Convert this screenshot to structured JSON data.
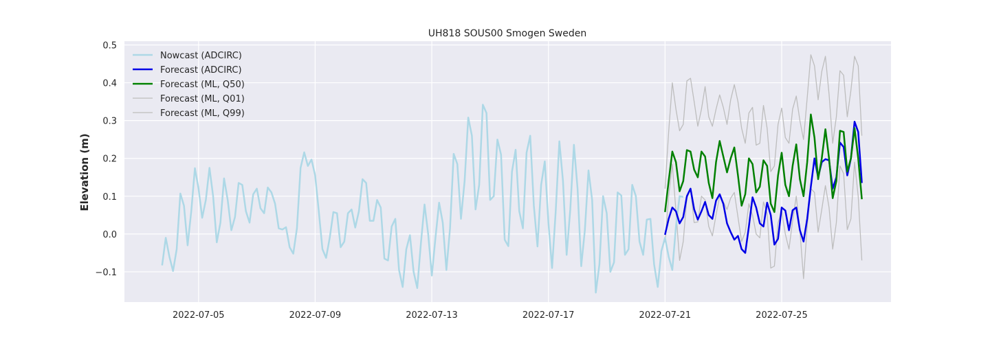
{
  "chart_data": {
    "type": "line",
    "title": "UH818 SOUS00 Smogen Sweden",
    "xlabel": "",
    "ylabel": "Elevation (m)",
    "xlim": [
      "2022-07-02T11:00",
      "2022-07-28T18:00"
    ],
    "ylim": [
      -0.18,
      0.51
    ],
    "x_ticks": [
      "2022-07-05",
      "2022-07-09",
      "2022-07-13",
      "2022-07-17",
      "2022-07-21",
      "2022-07-25"
    ],
    "y_ticks": [
      "0.5",
      "0.4",
      "0.3",
      "0.2",
      "0.1",
      "0.0",
      "−0.1"
    ],
    "y_tick_values": [
      0.5,
      0.4,
      0.3,
      0.2,
      0.1,
      0.0,
      -0.1
    ],
    "grid": true,
    "legend_position": "top-left",
    "series": [
      {
        "name": "Nowcast (ADCIRC)",
        "color": "#add8e6",
        "width": 2.5,
        "start": "2022-07-03T18:00",
        "step_hours": 3,
        "values": [
          -0.083,
          -0.01,
          -0.06,
          -0.098,
          -0.04,
          0.107,
          0.075,
          -0.03,
          0.06,
          0.174,
          0.12,
          0.043,
          0.09,
          0.175,
          0.1,
          -0.022,
          0.03,
          0.147,
          0.09,
          0.01,
          0.045,
          0.135,
          0.13,
          0.06,
          0.03,
          0.105,
          0.12,
          0.068,
          0.055,
          0.123,
          0.11,
          0.08,
          0.015,
          0.012,
          0.018,
          -0.035,
          -0.052,
          0.015,
          0.175,
          0.216,
          0.18,
          0.197,
          0.155,
          0.06,
          -0.04,
          -0.063,
          -0.01,
          0.058,
          0.055,
          -0.035,
          -0.02,
          0.055,
          0.065,
          0.017,
          0.06,
          0.145,
          0.135,
          0.035,
          0.035,
          0.09,
          0.07,
          -0.065,
          -0.07,
          0.02,
          0.04,
          -0.095,
          -0.14,
          -0.04,
          -0.003,
          -0.1,
          -0.143,
          -0.025,
          0.078,
          0.0,
          -0.11,
          -0.01,
          0.083,
          0.03,
          -0.095,
          0.015,
          0.212,
          0.185,
          0.04,
          0.14,
          0.308,
          0.26,
          0.065,
          0.13,
          0.342,
          0.32,
          0.09,
          0.1,
          0.25,
          0.21,
          -0.015,
          -0.032,
          0.165,
          0.223,
          0.06,
          0.015,
          0.215,
          0.26,
          0.075,
          -0.033,
          0.13,
          0.192,
          0.03,
          -0.09,
          0.06,
          0.245,
          0.14,
          -0.055,
          0.065,
          0.236,
          0.12,
          -0.085,
          0.01,
          0.168,
          0.09,
          -0.155,
          -0.08,
          0.1,
          0.055,
          -0.1,
          -0.075,
          0.11,
          0.102,
          -0.055,
          -0.04,
          0.13,
          0.1,
          -0.02,
          -0.055,
          0.038,
          0.04,
          -0.08,
          -0.14,
          -0.045,
          -0.01,
          -0.06,
          -0.095,
          0.02,
          0.1,
          0.098
        ]
      },
      {
        "name": "Forecast (ADCIRC)",
        "color": "#0000e6",
        "width": 2.5,
        "start": "2022-07-21T00:00",
        "step_hours": 3,
        "values": [
          -0.002,
          0.04,
          0.07,
          0.06,
          0.028,
          0.045,
          0.1,
          0.12,
          0.065,
          0.038,
          0.06,
          0.085,
          0.05,
          0.04,
          0.088,
          0.105,
          0.08,
          0.028,
          0.005,
          -0.015,
          -0.005,
          -0.04,
          -0.05,
          0.02,
          0.097,
          0.07,
          0.028,
          0.02,
          0.083,
          0.05,
          -0.028,
          -0.013,
          0.07,
          0.062,
          0.01,
          0.063,
          0.07,
          0.01,
          -0.02,
          0.04,
          0.125,
          0.2,
          0.15,
          0.19,
          0.198,
          0.195,
          0.12,
          0.15,
          0.242,
          0.23,
          0.155,
          0.2,
          0.297,
          0.27,
          0.135
        ]
      },
      {
        "name": "Forecast (ML, Q50)",
        "color": "#008000",
        "width": 2.5,
        "start": "2022-07-21T00:00",
        "step_hours": 3,
        "values": [
          0.058,
          0.14,
          0.218,
          0.19,
          0.113,
          0.14,
          0.222,
          0.218,
          0.17,
          0.15,
          0.218,
          0.205,
          0.135,
          0.095,
          0.19,
          0.246,
          0.205,
          0.163,
          0.2,
          0.229,
          0.155,
          0.075,
          0.105,
          0.2,
          0.185,
          0.11,
          0.125,
          0.195,
          0.18,
          0.08,
          0.058,
          0.155,
          0.215,
          0.13,
          0.1,
          0.18,
          0.237,
          0.145,
          0.1,
          0.19,
          0.316,
          0.255,
          0.145,
          0.2,
          0.277,
          0.2,
          0.095,
          0.14,
          0.273,
          0.27,
          0.165,
          0.2,
          0.28,
          0.2,
          0.092
        ]
      },
      {
        "name": "Forecast (ML, Q01)",
        "color": "#bdbdbd",
        "width": 1.3,
        "start": "2022-07-21T00:00",
        "step_hours": 3,
        "values": [
          -0.022,
          0.1,
          0.185,
          0.06,
          -0.07,
          -0.02,
          0.095,
          0.12,
          0.03,
          0.032,
          0.1,
          0.09,
          0.02,
          -0.005,
          0.05,
          0.1,
          0.085,
          0.065,
          0.095,
          0.11,
          0.045,
          -0.02,
          0.005,
          0.08,
          0.05,
          0.0,
          -0.01,
          0.085,
          0.055,
          -0.09,
          -0.085,
          0.03,
          0.06,
          0.0,
          -0.04,
          0.035,
          0.1,
          0.01,
          -0.118,
          0.02,
          0.12,
          0.11,
          0.005,
          0.065,
          0.128,
          0.07,
          -0.04,
          0.03,
          0.18,
          0.16,
          0.012,
          0.04,
          0.19,
          0.1,
          -0.07
        ]
      },
      {
        "name": "Forecast (ML, Q99)",
        "color": "#bdbdbd",
        "width": 1.3,
        "start": "2022-07-21T00:00",
        "step_hours": 3,
        "values": [
          0.12,
          0.27,
          0.4,
          0.33,
          0.273,
          0.29,
          0.405,
          0.412,
          0.35,
          0.285,
          0.33,
          0.39,
          0.31,
          0.285,
          0.33,
          0.368,
          0.335,
          0.29,
          0.355,
          0.395,
          0.35,
          0.28,
          0.24,
          0.32,
          0.335,
          0.235,
          0.24,
          0.34,
          0.28,
          0.165,
          0.18,
          0.29,
          0.333,
          0.255,
          0.24,
          0.33,
          0.365,
          0.3,
          0.25,
          0.36,
          0.474,
          0.445,
          0.355,
          0.43,
          0.47,
          0.37,
          0.24,
          0.31,
          0.432,
          0.42,
          0.31,
          0.38,
          0.47,
          0.445,
          0.26
        ]
      }
    ]
  }
}
